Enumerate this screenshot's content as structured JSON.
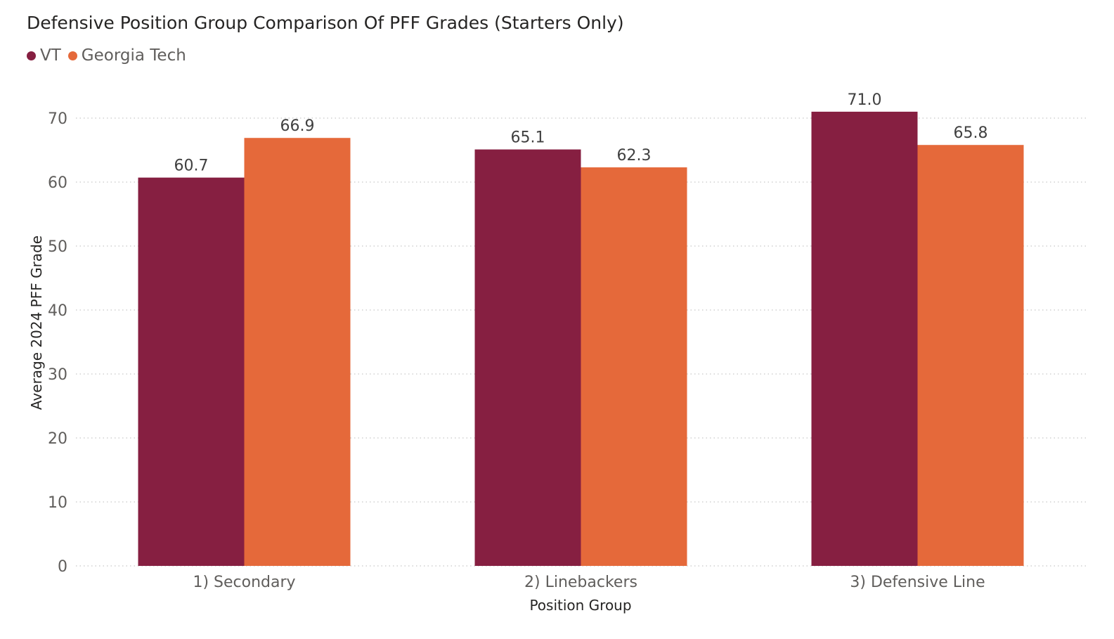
{
  "chart_data": {
    "type": "bar",
    "title": "Defensive Position Group Comparison Of PFF Grades (Starters Only)",
    "xlabel": "Position Group",
    "ylabel": "Average 2024 PFF Grade",
    "categories": [
      "1) Secondary",
      "2) Linebackers",
      "3) Defensive Line"
    ],
    "series": [
      {
        "name": "VT",
        "color": "#861F41",
        "values": [
          60.7,
          65.1,
          71.0
        ]
      },
      {
        "name": "Georgia Tech",
        "color": "#E5693A",
        "values": [
          66.9,
          62.3,
          65.8
        ]
      }
    ],
    "ylim": [
      0,
      70
    ],
    "yticks": [
      0,
      10,
      20,
      30,
      40,
      50,
      60,
      70
    ],
    "grid": true,
    "legend": "top-left"
  }
}
